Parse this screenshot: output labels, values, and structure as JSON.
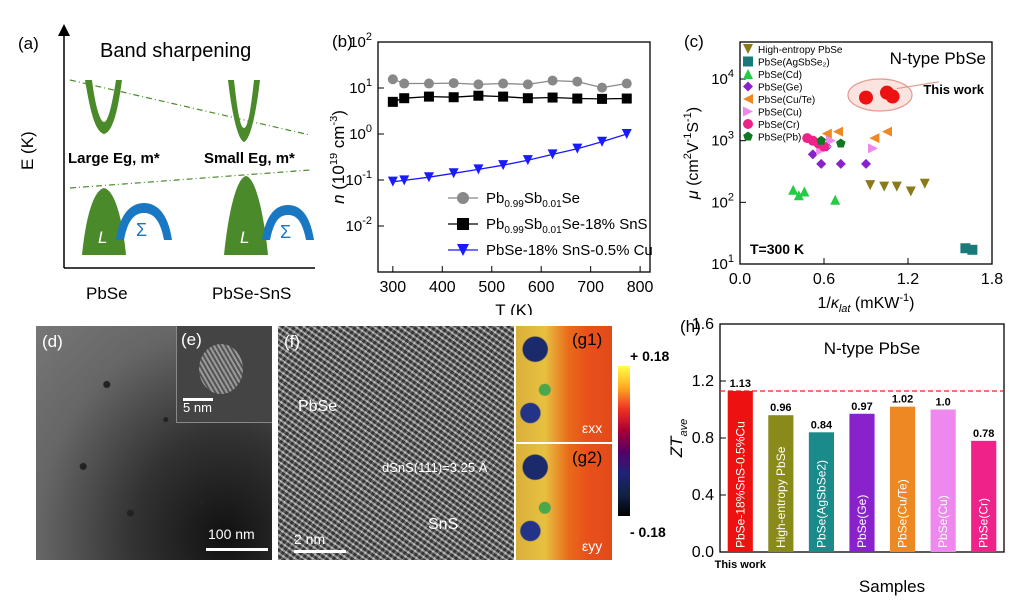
{
  "panels": {
    "a": {
      "label": "(a)",
      "title": "Band sharpening",
      "yaxis": "E (K)",
      "left_text": "Large Eg, m*",
      "right_text": "Small Eg, m*",
      "band_L": "L",
      "band_S": "Σ",
      "x_left": "PbSe",
      "x_right": "PbSe-SnS",
      "colors": {
        "green": "#4a8a2a",
        "blue": "#1a78c2"
      }
    },
    "b": {
      "label": "(b)"
    },
    "c": {
      "label": "(c)",
      "title": "N-type PbSe",
      "annotation": "This work",
      "temp": "T=300 K"
    },
    "d": {
      "label": "(d)",
      "scale": "100 nm"
    },
    "e": {
      "label": "(e)",
      "scale": "5 nm"
    },
    "f": {
      "label": "(f)",
      "material": "PbSe",
      "dspacing": "dSnS(111)=3.25 Å",
      "phase": "SnS",
      "scale": "2 nm"
    },
    "g1": {
      "label": "(g1)",
      "comp": "εxx"
    },
    "g2": {
      "label": "(g2)",
      "comp": "εyy"
    },
    "colorbar": {
      "max": "+ 0.18",
      "min": "- 0.18"
    },
    "h": {
      "label": "(h)",
      "title": "N-type PbSe",
      "footnote": "This work"
    }
  },
  "chart_data": [
    {
      "id": "b",
      "type": "line",
      "xlabel": "T (K)",
      "ylabel": "n (10^19 cm^-3)",
      "xlim": [
        270,
        820
      ],
      "ylim_log10": [
        -3,
        2
      ],
      "xticks": [
        "300",
        "400",
        "500",
        "600",
        "700",
        "800"
      ],
      "yticks": [
        "10^-2",
        "10^-1",
        "10^0",
        "10^1",
        "10^2"
      ],
      "series": [
        {
          "name": "Pb0.99Sb0.01Se",
          "color": "#888888",
          "marker": "circle",
          "x": [
            300,
            323,
            373,
            423,
            473,
            523,
            573,
            623,
            673,
            723,
            773
          ],
          "y": [
            15.5,
            12.5,
            12.5,
            12.8,
            12.0,
            12.5,
            12.0,
            14.5,
            13.8,
            10.2,
            12.5
          ]
        },
        {
          "name": "Pb0.99Sb0.01Se-18% SnS",
          "color": "#000000",
          "marker": "square",
          "x": [
            300,
            323,
            373,
            423,
            473,
            523,
            573,
            623,
            673,
            723,
            773
          ],
          "y": [
            5.0,
            6.0,
            6.5,
            6.3,
            6.8,
            6.5,
            6.0,
            6.2,
            5.9,
            5.8,
            5.9
          ]
        },
        {
          "name": "PbSe-18% SnS-0.5% Cu",
          "color": "#1a1aff",
          "marker": "triangle-down",
          "x": [
            300,
            323,
            373,
            423,
            473,
            523,
            573,
            623,
            673,
            723,
            773
          ],
          "y": [
            0.092,
            0.098,
            0.115,
            0.14,
            0.17,
            0.21,
            0.27,
            0.36,
            0.48,
            0.68,
            1.0
          ]
        }
      ]
    },
    {
      "id": "c",
      "type": "scatter",
      "xlabel": "1/κlat (mKW^-1)",
      "ylabel": "μ (cm²V⁻¹S⁻¹)",
      "xlim": [
        0,
        1.8
      ],
      "ylim_log10": [
        1,
        4.6
      ],
      "xticks": [
        "0.0",
        "0.6",
        "1.2",
        "1.8"
      ],
      "yticks": [
        "10^1",
        "10^2",
        "10^3",
        "10^4"
      ],
      "series": [
        {
          "name": "High-entropy PbSe",
          "color": "#8a7a1a",
          "marker": "triangle-down",
          "x": [
            0.93,
            1.03,
            1.12,
            1.22,
            1.32
          ],
          "y": [
            190,
            180,
            180,
            150,
            200
          ]
        },
        {
          "name": "PbSe(AgSbSe2)",
          "color": "#1a7a7a",
          "marker": "square",
          "x": [
            1.61,
            1.66
          ],
          "y": [
            18,
            17
          ]
        },
        {
          "name": "PbSe(Cd)",
          "color": "#22cc44",
          "marker": "triangle",
          "x": [
            0.38,
            0.42,
            0.46,
            0.68
          ],
          "y": [
            160,
            130,
            150,
            110
          ]
        },
        {
          "name": "PbSe(Ge)",
          "color": "#8a22cc",
          "marker": "diamond",
          "x": [
            0.52,
            0.58,
            0.62,
            0.72,
            0.9
          ],
          "y": [
            600,
            420,
            800,
            420,
            420
          ]
        },
        {
          "name": "PbSe(Cu/Te)",
          "color": "#ee8822",
          "marker": "triangle-left",
          "x": [
            0.62,
            0.7,
            0.96,
            1.05
          ],
          "y": [
            1300,
            1400,
            1100,
            1400
          ]
        },
        {
          "name": "PbSe(Cu)",
          "color": "#ee88ee",
          "marker": "triangle-right",
          "x": [
            0.58,
            0.62,
            0.65,
            0.95
          ],
          "y": [
            700,
            800,
            1000,
            750
          ]
        },
        {
          "name": "PbSe(Cr)",
          "color": "#ee2288",
          "marker": "circle",
          "x": [
            0.48,
            0.52,
            0.56,
            0.6
          ],
          "y": [
            1100,
            1000,
            900,
            800
          ]
        },
        {
          "name": "PbSe(Pb)",
          "color": "#117722",
          "marker": "pentagon",
          "x": [
            0.58,
            0.72
          ],
          "y": [
            1000,
            900
          ]
        },
        {
          "name": "This work",
          "color": "#ee1111",
          "marker": "circle",
          "x": [
            0.9,
            1.05,
            1.09
          ],
          "y": [
            5000,
            6000,
            5200
          ]
        }
      ]
    },
    {
      "id": "h",
      "type": "bar",
      "ylabel": "ZTave",
      "xlabel": "Samples",
      "ylim": [
        0,
        1.6
      ],
      "yticks": [
        "0.0",
        "0.4",
        "0.8",
        "1.2",
        "1.6"
      ],
      "reference_line": 1.13,
      "categories": [
        "PbSe-18%SnS-0.5%Cu",
        "High-entropy PbSe",
        "PbSe(AgSbSe2)",
        "PbSe(Ge)",
        "PbSe(Cu/Te)",
        "PbSe(Cu)",
        "PbSe(Cr)"
      ],
      "values": [
        1.13,
        0.96,
        0.84,
        0.97,
        1.02,
        1.0,
        0.78
      ],
      "value_labels": [
        "1.13",
        "0.96",
        "0.84",
        "0.97",
        "1.02",
        "1.0",
        "0.78"
      ],
      "colors": [
        "#ee1111",
        "#8a8a1a",
        "#1a8a8a",
        "#8a22cc",
        "#ee8822",
        "#ee88ee",
        "#ee2288"
      ]
    }
  ]
}
